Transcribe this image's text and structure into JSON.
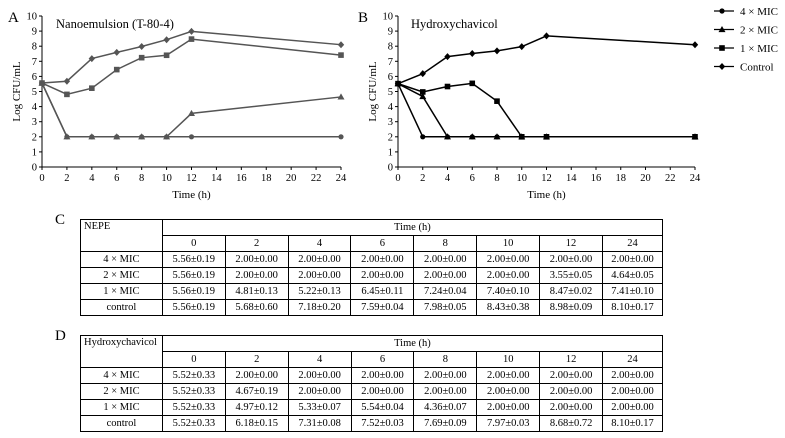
{
  "chart_data": [
    {
      "type": "line",
      "panel": "A",
      "title": "Nanoemulsion (T-80-4)",
      "xlabel": "Time (h)",
      "ylabel": "Log CFU/mL",
      "x": [
        0,
        2,
        4,
        6,
        8,
        10,
        12,
        24
      ],
      "xlim": [
        0,
        24
      ],
      "ylim": [
        0,
        10
      ],
      "xticks": [
        0,
        2,
        4,
        6,
        8,
        10,
        12,
        14,
        16,
        18,
        20,
        22,
        24
      ],
      "yticks": [
        0,
        1,
        2,
        3,
        4,
        5,
        6,
        7,
        8,
        9,
        10
      ],
      "series": [
        {
          "name": "4 × MIC",
          "marker": "circle",
          "values": [
            5.56,
            2.0,
            2.0,
            2.0,
            2.0,
            2.0,
            2.0,
            2.0
          ]
        },
        {
          "name": "2 × MIC",
          "marker": "triangle",
          "values": [
            5.56,
            2.0,
            2.0,
            2.0,
            2.0,
            2.0,
            3.55,
            4.64
          ]
        },
        {
          "name": "1 × MIC",
          "marker": "square",
          "values": [
            5.56,
            4.81,
            5.22,
            6.45,
            7.24,
            7.4,
            8.47,
            7.41
          ]
        },
        {
          "name": "Control",
          "marker": "diamond",
          "values": [
            5.56,
            5.68,
            7.18,
            7.59,
            7.98,
            8.43,
            8.98,
            8.1
          ]
        }
      ]
    },
    {
      "type": "line",
      "panel": "B",
      "title": "Hydroxychavicol",
      "xlabel": "Time (h)",
      "ylabel": "Log CFU/mL",
      "x": [
        0,
        2,
        4,
        6,
        8,
        10,
        12,
        24
      ],
      "xlim": [
        0,
        24
      ],
      "ylim": [
        0,
        10
      ],
      "xticks": [
        0,
        2,
        4,
        6,
        8,
        10,
        12,
        14,
        16,
        18,
        20,
        22,
        24
      ],
      "yticks": [
        0,
        1,
        2,
        3,
        4,
        5,
        6,
        7,
        8,
        9,
        10
      ],
      "series": [
        {
          "name": "4 × MIC",
          "marker": "circle",
          "values": [
            5.52,
            2.0,
            2.0,
            2.0,
            2.0,
            2.0,
            2.0,
            2.0
          ]
        },
        {
          "name": "2 × MIC",
          "marker": "triangle",
          "values": [
            5.52,
            4.67,
            2.0,
            2.0,
            2.0,
            2.0,
            2.0,
            2.0
          ]
        },
        {
          "name": "1 × MIC",
          "marker": "square",
          "values": [
            5.52,
            4.97,
            5.33,
            5.54,
            4.36,
            2.0,
            2.0,
            2.0
          ]
        },
        {
          "name": "Control",
          "marker": "diamond",
          "values": [
            5.52,
            6.18,
            7.31,
            7.52,
            7.69,
            7.97,
            8.68,
            8.1
          ]
        }
      ]
    }
  ],
  "colors": {
    "panelA_line": "#555555",
    "panelB_line": "#000000"
  },
  "legend": {
    "placement": "top-right",
    "items": [
      "4 × MIC",
      "2 × MIC",
      "1 × MIC",
      "Control"
    ]
  },
  "tables": {
    "C": {
      "label": "C",
      "corner": "NEPE",
      "time_header": "Time (h)",
      "times": [
        "0",
        "2",
        "4",
        "6",
        "8",
        "10",
        "12",
        "24"
      ],
      "rows": [
        {
          "label": "4 × MIC",
          "cells": [
            "5.56±0.19",
            "2.00±0.00",
            "2.00±0.00",
            "2.00±0.00",
            "2.00±0.00",
            "2.00±0.00",
            "2.00±0.00",
            "2.00±0.00"
          ]
        },
        {
          "label": "2 × MIC",
          "cells": [
            "5.56±0.19",
            "2.00±0.00",
            "2.00±0.00",
            "2.00±0.00",
            "2.00±0.00",
            "2.00±0.00",
            "3.55±0.05",
            "4.64±0.05"
          ]
        },
        {
          "label": "1 × MIC",
          "cells": [
            "5.56±0.19",
            "4.81±0.13",
            "5.22±0.13",
            "6.45±0.11",
            "7.24±0.04",
            "7.40±0.10",
            "8.47±0.02",
            "7.41±0.10"
          ]
        },
        {
          "label": "control",
          "cells": [
            "5.56±0.19",
            "5.68±0.60",
            "7.18±0.20",
            "7.59±0.04",
            "7.98±0.05",
            "8.43±0.38",
            "8.98±0.09",
            "8.10±0.17"
          ]
        }
      ]
    },
    "D": {
      "label": "D",
      "corner": "Hydroxychavicol",
      "time_header": "Time (h)",
      "times": [
        "0",
        "2",
        "4",
        "6",
        "8",
        "10",
        "12",
        "24"
      ],
      "rows": [
        {
          "label": "4 × MIC",
          "cells": [
            "5.52±0.33",
            "2.00±0.00",
            "2.00±0.00",
            "2.00±0.00",
            "2.00±0.00",
            "2.00±0.00",
            "2.00±0.00",
            "2.00±0.00"
          ]
        },
        {
          "label": "2 × MIC",
          "cells": [
            "5.52±0.33",
            "4.67±0.19",
            "2.00±0.00",
            "2.00±0.00",
            "2.00±0.00",
            "2.00±0.00",
            "2.00±0.00",
            "2.00±0.00"
          ]
        },
        {
          "label": "1 × MIC",
          "cells": [
            "5.52±0.33",
            "4.97±0.12",
            "5.33±0.07",
            "5.54±0.04",
            "4.36±0.07",
            "2.00±0.00",
            "2.00±0.00",
            "2.00±0.00"
          ]
        },
        {
          "label": "control",
          "cells": [
            "5.52±0.33",
            "6.18±0.15",
            "7.31±0.08",
            "7.52±0.03",
            "7.69±0.09",
            "7.97±0.03",
            "8.68±0.72",
            "8.10±0.17"
          ]
        }
      ]
    }
  }
}
